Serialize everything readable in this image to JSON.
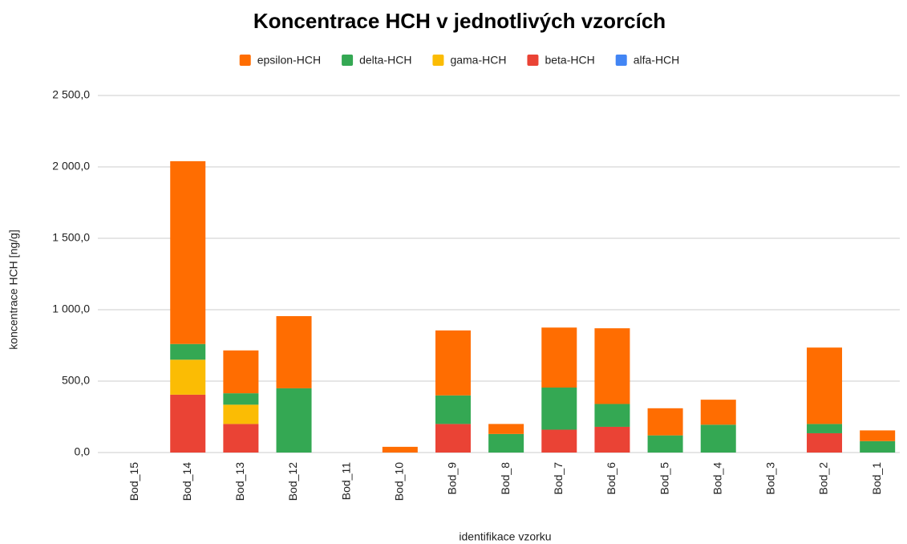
{
  "chart_data": {
    "type": "stacked_bar",
    "title": "Koncentrace HCH v jednotlivých vzorcích",
    "x_label": "identifikace vzorku",
    "y_label": "koncentrace HCH [ng/g]",
    "categories": [
      "Bod_15",
      "Bod_14",
      "Bod_13",
      "Bod_12",
      "Bod_11",
      "Bod_10",
      "Bod_9",
      "Bod_8",
      "Bod_7",
      "Bod_6",
      "Bod_5",
      "Bod_4",
      "Bod_3",
      "Bod_2",
      "Bod_1"
    ],
    "series": [
      {
        "name": "alfa-HCH",
        "color": "#4285f4",
        "values": [
          0,
          0,
          0,
          0,
          0,
          0,
          0,
          0,
          0,
          0,
          0,
          0,
          0,
          0,
          0
        ]
      },
      {
        "name": "beta-HCH",
        "color": "#ea4335",
        "values": [
          0,
          405,
          200,
          0,
          0,
          0,
          200,
          0,
          160,
          180,
          0,
          0,
          0,
          135,
          0
        ]
      },
      {
        "name": "gama-HCH",
        "color": "#fbbc04",
        "values": [
          0,
          245,
          135,
          0,
          0,
          0,
          0,
          0,
          0,
          0,
          0,
          0,
          0,
          0,
          0
        ]
      },
      {
        "name": "delta-HCH",
        "color": "#34a853",
        "values": [
          0,
          110,
          80,
          450,
          0,
          0,
          200,
          130,
          295,
          160,
          120,
          195,
          0,
          65,
          80
        ]
      },
      {
        "name": "epsilon-HCH",
        "color": "#ff6d01",
        "values": [
          0,
          1280,
          300,
          505,
          0,
          40,
          455,
          70,
          420,
          530,
          190,
          175,
          0,
          535,
          75
        ]
      }
    ],
    "ylim": [
      0,
      2500
    ],
    "yticks": [
      {
        "value": 0,
        "label": "0,0"
      },
      {
        "value": 500,
        "label": "500,0"
      },
      {
        "value": 1000,
        "label": "1 000,0"
      },
      {
        "value": 1500,
        "label": "1 500,0"
      },
      {
        "value": 2000,
        "label": "2 000,0"
      },
      {
        "value": 2500,
        "label": "2 500,0"
      }
    ],
    "grid": true,
    "legend": "top"
  }
}
